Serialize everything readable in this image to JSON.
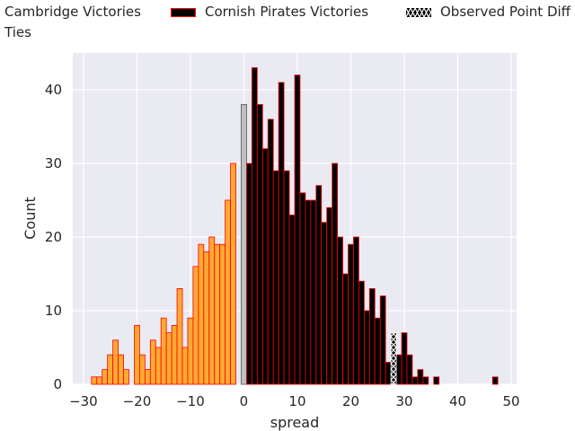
{
  "chart_data": {
    "type": "bar",
    "xlabel": "spread",
    "ylabel": "Count",
    "xlim": [
      -32,
      51
    ],
    "ylim": [
      0,
      45
    ],
    "xticks": [
      -30,
      -20,
      -10,
      0,
      10,
      20,
      30,
      40,
      50
    ],
    "yticks": [
      0,
      10,
      20,
      30,
      40
    ],
    "grid": true,
    "legend_placement": "top",
    "legend": [
      {
        "label": "Cambridge Victories",
        "color": "#ffaa33"
      },
      {
        "label": "Cornish Pirates Victories",
        "color": "#000000"
      },
      {
        "label": "Observed Point Diff",
        "color": "#000000"
      },
      {
        "label": "Ties",
        "color": "#c0c0c0"
      }
    ],
    "colors": {
      "cambridge": "#ffaa33",
      "cornish": "#000000",
      "edge": "#ff0000",
      "tie": "#c0c0c0",
      "observed": "#000000",
      "plot_bg": "#eaeaf2"
    },
    "series": [
      {
        "name": "Cambridge Victories",
        "x": [
          -28,
          -27,
          -26,
          -25,
          -24,
          -23,
          -22,
          -21,
          -20,
          -19,
          -18,
          -17,
          -16,
          -15,
          -14,
          -13,
          -12,
          -11,
          -10,
          -9,
          -8,
          -7,
          -6,
          -5,
          -4,
          -3,
          -2,
          -1
        ],
        "values": [
          1,
          1,
          2,
          4,
          6,
          4,
          2,
          0,
          8,
          4,
          2,
          6,
          5,
          9,
          7,
          8,
          13,
          5,
          9,
          16,
          19,
          18,
          20,
          19,
          19,
          25,
          30,
          0
        ]
      },
      {
        "name": "Ties",
        "x": [
          0
        ],
        "values": [
          38
        ]
      },
      {
        "name": "Cornish Pirates Victories",
        "x": [
          1,
          2,
          3,
          4,
          5,
          6,
          7,
          8,
          9,
          10,
          11,
          12,
          13,
          14,
          15,
          16,
          17,
          18,
          19,
          20,
          21,
          22,
          23,
          24,
          25,
          26,
          27,
          28,
          29,
          30,
          31,
          32,
          33,
          34,
          35,
          36,
          47
        ],
        "values": [
          30,
          43,
          38,
          32,
          36,
          29,
          41,
          29,
          23,
          42,
          26,
          25,
          25,
          27,
          22,
          24,
          30,
          20,
          15,
          19,
          20,
          14,
          10,
          13,
          9,
          12,
          3,
          0,
          4,
          7,
          4,
          1,
          2,
          1,
          0,
          1,
          1
        ]
      },
      {
        "name": "Observed Point Diff",
        "x": [
          28
        ],
        "values": [
          7
        ]
      }
    ]
  }
}
